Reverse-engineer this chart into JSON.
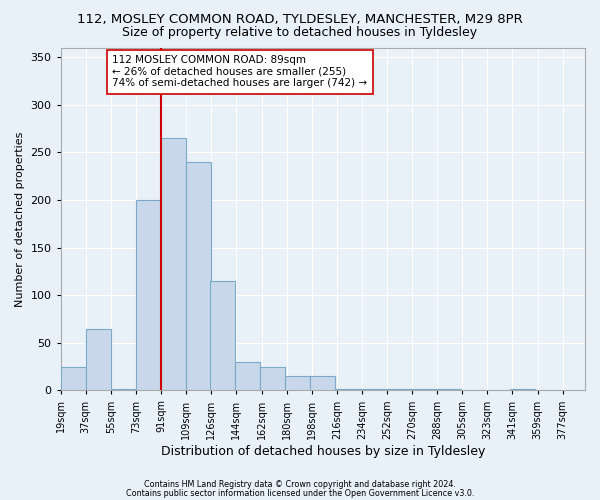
{
  "title1": "112, MOSLEY COMMON ROAD, TYLDESLEY, MANCHESTER, M29 8PR",
  "title2": "Size of property relative to detached houses in Tyldesley",
  "xlabel": "Distribution of detached houses by size in Tyldesley",
  "ylabel": "Number of detached properties",
  "footnote1": "Contains HM Land Registry data © Crown copyright and database right 2024.",
  "footnote2": "Contains public sector information licensed under the Open Government Licence v3.0.",
  "bar_left_edges": [
    19,
    37,
    55,
    73,
    91,
    109,
    126,
    144,
    162,
    180,
    198,
    216,
    234,
    252,
    270,
    288,
    305,
    323,
    341,
    359
  ],
  "bar_heights": [
    25,
    65,
    2,
    200,
    265,
    240,
    115,
    30,
    25,
    15,
    15,
    1,
    1,
    1,
    1,
    1,
    0,
    0,
    1,
    0
  ],
  "bin_width": 18,
  "bar_color": "#c8d8ea",
  "bar_edge_color": "#7aaac8",
  "vline_x": 91,
  "vline_color": "#cc0000",
  "annotation_text": "112 MOSLEY COMMON ROAD: 89sqm\n← 26% of detached houses are smaller (255)\n74% of semi-detached houses are larger (742) →",
  "annotation_box_color": "#ffffff",
  "annotation_box_edge": "#cc0000",
  "ylim": [
    0,
    360
  ],
  "yticks": [
    0,
    50,
    100,
    150,
    200,
    250,
    300,
    350
  ],
  "tick_labels": [
    "19sqm",
    "37sqm",
    "55sqm",
    "73sqm",
    "91sqm",
    "109sqm",
    "126sqm",
    "144sqm",
    "162sqm",
    "180sqm",
    "198sqm",
    "216sqm",
    "234sqm",
    "252sqm",
    "270sqm",
    "288sqm",
    "305sqm",
    "323sqm",
    "341sqm",
    "359sqm",
    "377sqm"
  ],
  "xlim_min": 19,
  "xlim_max": 395,
  "background_color": "#e8f0f8",
  "grid_color": "#ffffff",
  "title1_fontsize": 9.5,
  "title2_fontsize": 9,
  "xlabel_fontsize": 9,
  "ylabel_fontsize": 8,
  "tick_fontsize": 7,
  "annot_fontsize": 7.5
}
